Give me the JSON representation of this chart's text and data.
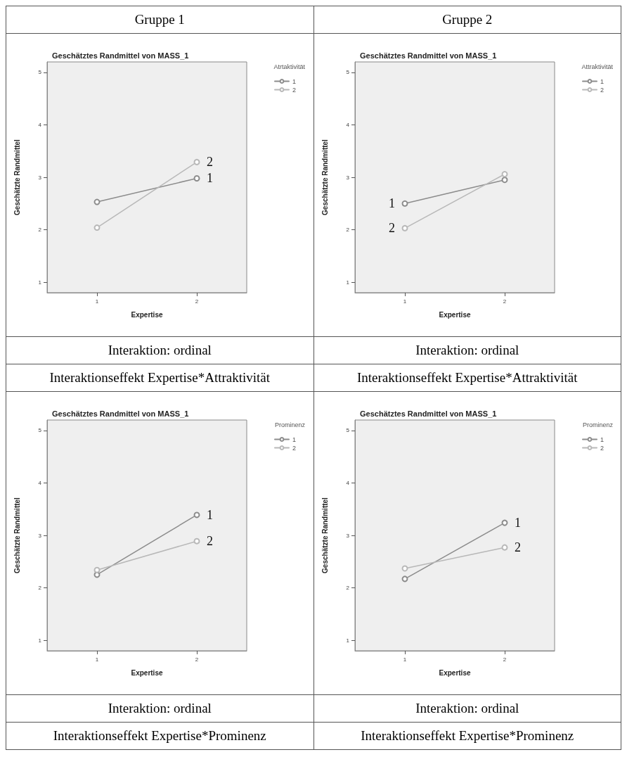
{
  "chart_data": [
    {
      "type": "line",
      "subtitle": "Gruppe 1",
      "title": "Geschätztes Randmittel von MASS_1",
      "xlabel": "Expertise",
      "ylabel": "Geschätzte Randmittel",
      "legend_title": "Atrtaktivität",
      "categories": [
        "1",
        "2"
      ],
      "ylim": [
        0.8,
        5.2
      ],
      "yticks": [
        1,
        2,
        3,
        4,
        5
      ],
      "grid": false,
      "legend": "top right",
      "marker": "circle",
      "line_style": "solid",
      "series": [
        {
          "name": "1",
          "color": "#8c8c8c",
          "values": [
            2.53,
            2.98
          ]
        },
        {
          "name": "2",
          "color": "#b8b8b8",
          "values": [
            2.04,
            3.29
          ]
        }
      ],
      "annotations": [
        {
          "text": "2",
          "x": "2",
          "y": 3.29
        },
        {
          "text": "1",
          "x": "2",
          "y": 2.98
        },
        "Interaktion: ordinal",
        "Interaktionseffekt Expertise*Attraktivität"
      ]
    },
    {
      "type": "line",
      "subtitle": "Gruppe 2",
      "title": "Geschätztes Randmittel von MASS_1",
      "xlabel": "Expertise",
      "ylabel": "Geschätzte Randmittel",
      "legend_title": "Attraktivität",
      "categories": [
        "1",
        "2"
      ],
      "ylim": [
        0.8,
        5.2
      ],
      "yticks": [
        1,
        2,
        3,
        4,
        5
      ],
      "grid": false,
      "legend": "top right",
      "marker": "circle",
      "line_style": "solid",
      "series": [
        {
          "name": "1",
          "color": "#8c8c8c",
          "values": [
            2.5,
            2.95
          ]
        },
        {
          "name": "2",
          "color": "#b8b8b8",
          "values": [
            2.03,
            3.06
          ]
        }
      ],
      "annotations": [
        {
          "text": "1",
          "x": "1",
          "y": 2.5
        },
        {
          "text": "2",
          "x": "1",
          "y": 2.03
        },
        "Interaktion: ordinal",
        "Interaktionseffekt Expertise*Attraktivität"
      ]
    },
    {
      "type": "line",
      "title": "Geschätztes Randmittel von MASS_1",
      "xlabel": "Expertise",
      "ylabel": "Geschätzte Randmittel",
      "legend_title": "Prominenz",
      "categories": [
        "1",
        "2"
      ],
      "ylim": [
        0.8,
        5.2
      ],
      "yticks": [
        1,
        2,
        3,
        4,
        5
      ],
      "grid": false,
      "legend": "top right",
      "marker": "circle",
      "line_style": "solid",
      "series": [
        {
          "name": "1",
          "color": "#8c8c8c",
          "values": [
            2.25,
            3.39
          ]
        },
        {
          "name": "2",
          "color": "#b8b8b8",
          "values": [
            2.34,
            2.89
          ]
        }
      ],
      "annotations": [
        {
          "text": "1",
          "x": "2",
          "y": 3.39
        },
        {
          "text": "2",
          "x": "2",
          "y": 2.89
        },
        "Interaktion: ordinal",
        "Interaktionseffekt Expertise*Prominenz"
      ]
    },
    {
      "type": "line",
      "title": "Geschätztes Randmittel von MASS_1",
      "xlabel": "Expertise",
      "ylabel": "Geschätzte Randmittel",
      "legend_title": "Prominenz",
      "categories": [
        "1",
        "2"
      ],
      "ylim": [
        0.8,
        5.2
      ],
      "yticks": [
        1,
        2,
        3,
        4,
        5
      ],
      "grid": false,
      "legend": "top right",
      "marker": "circle",
      "line_style": "solid",
      "series": [
        {
          "name": "1",
          "color": "#8c8c8c",
          "values": [
            2.17,
            3.24
          ]
        },
        {
          "name": "2",
          "color": "#b8b8b8",
          "values": [
            2.37,
            2.77
          ]
        }
      ],
      "annotations": [
        {
          "text": "1",
          "x": "2",
          "y": 3.24
        },
        {
          "text": "2",
          "x": "2",
          "y": 2.77
        },
        "Interaktion: ordinal",
        "Interaktionseffekt Expertise*Prominenz"
      ]
    }
  ]
}
